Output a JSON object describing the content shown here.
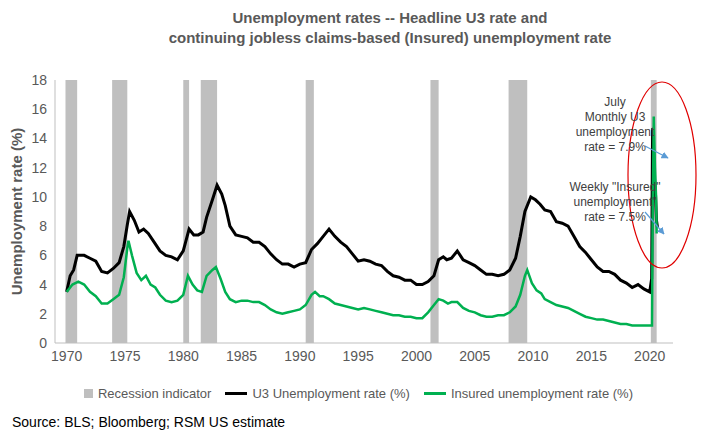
{
  "chart_data": {
    "type": "line",
    "title": [
      "Unemployment rates -- Headline U3 rate and",
      "continuing jobless claims-based (Insured) unemployment rate"
    ],
    "y_label": "Unemployment rate (%)",
    "xlim": [
      1969,
      2022
    ],
    "xticks": [
      1970,
      1975,
      1980,
      1985,
      1990,
      1995,
      2000,
      2005,
      2010,
      2015,
      2020
    ],
    "ylim": [
      0,
      18
    ],
    "yticks": [
      0,
      2,
      4,
      6,
      8,
      10,
      12,
      14,
      16,
      18
    ],
    "grid": false,
    "legend": "bottom",
    "recessions": {
      "name": "Recession indicator",
      "color": "#bfbfbf",
      "ranges": [
        [
          1969.9,
          1970.9
        ],
        [
          1973.9,
          1975.2
        ],
        [
          1980.0,
          1980.5
        ],
        [
          1981.5,
          1982.9
        ],
        [
          1990.5,
          1991.2
        ],
        [
          2001.2,
          2001.9
        ],
        [
          2007.9,
          2009.5
        ],
        [
          2020.1,
          2020.6
        ]
      ]
    },
    "series": [
      {
        "name": "U3 Unemployment rate (%)",
        "color": "#000000",
        "x": [
          1970.0,
          1970.3,
          1970.6,
          1970.9,
          1971.5,
          1972.0,
          1972.5,
          1973.0,
          1973.5,
          1974.0,
          1974.5,
          1974.9,
          1975.2,
          1975.4,
          1975.8,
          1976.2,
          1976.6,
          1977.0,
          1977.5,
          1978.0,
          1978.5,
          1979.0,
          1979.5,
          1980.0,
          1980.5,
          1980.9,
          1981.3,
          1981.7,
          1982.0,
          1982.5,
          1982.9,
          1983.3,
          1983.6,
          1984.0,
          1984.5,
          1985.0,
          1985.5,
          1986.0,
          1986.5,
          1987.0,
          1987.5,
          1988.0,
          1988.5,
          1989.0,
          1989.5,
          1990.0,
          1990.5,
          1991.0,
          1991.5,
          1992.0,
          1992.5,
          1993.0,
          1993.5,
          1994.0,
          1994.5,
          1995.0,
          1995.5,
          1996.0,
          1996.5,
          1997.0,
          1997.5,
          1998.0,
          1998.5,
          1999.0,
          1999.5,
          2000.0,
          2000.5,
          2001.0,
          2001.5,
          2001.9,
          2002.3,
          2002.6,
          2003.0,
          2003.5,
          2004.0,
          2004.5,
          2005.0,
          2005.5,
          2006.0,
          2006.5,
          2007.0,
          2007.5,
          2008.0,
          2008.5,
          2008.9,
          2009.3,
          2009.8,
          2010.2,
          2010.6,
          2011.0,
          2011.5,
          2012.0,
          2012.5,
          2013.0,
          2013.5,
          2014.0,
          2014.5,
          2015.0,
          2015.5,
          2016.0,
          2016.5,
          2017.0,
          2017.5,
          2018.0,
          2018.5,
          2019.0,
          2019.5,
          2020.0,
          2020.17,
          2020.25,
          2020.33,
          2020.42,
          2020.5,
          2020.58,
          2020.67
        ],
        "values": [
          3.5,
          4.6,
          5.0,
          6.0,
          6.0,
          5.8,
          5.6,
          4.9,
          4.8,
          5.1,
          5.5,
          6.6,
          8.1,
          9.0,
          8.4,
          7.6,
          7.8,
          7.5,
          6.9,
          6.3,
          6.0,
          5.9,
          5.7,
          6.3,
          7.8,
          7.4,
          7.4,
          7.6,
          8.6,
          9.8,
          10.8,
          10.2,
          9.4,
          8.0,
          7.4,
          7.3,
          7.2,
          6.9,
          6.9,
          6.6,
          6.1,
          5.7,
          5.4,
          5.4,
          5.2,
          5.4,
          5.5,
          6.4,
          6.8,
          7.3,
          7.8,
          7.3,
          6.9,
          6.6,
          6.1,
          5.6,
          5.7,
          5.6,
          5.4,
          5.3,
          4.9,
          4.6,
          4.5,
          4.3,
          4.3,
          4.0,
          4.0,
          4.2,
          4.6,
          5.7,
          5.9,
          5.7,
          5.8,
          6.3,
          5.7,
          5.5,
          5.3,
          5.0,
          4.7,
          4.7,
          4.6,
          4.7,
          5.0,
          5.8,
          7.3,
          9.0,
          10.0,
          9.8,
          9.5,
          9.1,
          9.0,
          8.3,
          8.2,
          8.0,
          7.3,
          6.6,
          6.2,
          5.7,
          5.2,
          4.9,
          4.9,
          4.7,
          4.3,
          4.1,
          3.8,
          4.0,
          3.7,
          3.5,
          4.4,
          14.7,
          13.3,
          11.1,
          10.2,
          8.4,
          7.9
        ]
      },
      {
        "name": "Insured unemployment rate (%)",
        "color": "#00b050",
        "x": [
          1970.0,
          1970.5,
          1971.0,
          1971.5,
          1972.0,
          1972.5,
          1973.0,
          1973.5,
          1974.0,
          1974.5,
          1974.9,
          1975.2,
          1975.3,
          1975.6,
          1976.0,
          1976.4,
          1976.8,
          1977.2,
          1977.6,
          1978.0,
          1978.5,
          1979.0,
          1979.5,
          1980.0,
          1980.4,
          1980.8,
          1981.2,
          1981.6,
          1982.0,
          1982.5,
          1982.8,
          1983.2,
          1983.6,
          1984.0,
          1984.5,
          1985.0,
          1985.5,
          1986.0,
          1986.5,
          1987.0,
          1987.5,
          1988.0,
          1988.5,
          1989.0,
          1989.5,
          1990.0,
          1990.5,
          1991.0,
          1991.3,
          1991.7,
          1992.0,
          1992.5,
          1993.0,
          1993.5,
          1994.0,
          1994.5,
          1995.0,
          1995.5,
          1996.0,
          1996.5,
          1997.0,
          1997.5,
          1998.0,
          1998.5,
          1999.0,
          1999.5,
          2000.0,
          2000.5,
          2001.0,
          2001.5,
          2001.9,
          2002.3,
          2002.7,
          2003.0,
          2003.5,
          2004.0,
          2004.5,
          2005.0,
          2005.5,
          2006.0,
          2006.5,
          2007.0,
          2007.5,
          2008.0,
          2008.5,
          2008.9,
          2009.3,
          2009.5,
          2009.9,
          2010.3,
          2010.7,
          2011.0,
          2011.5,
          2012.0,
          2012.5,
          2013.0,
          2013.5,
          2014.0,
          2014.5,
          2015.0,
          2015.5,
          2016.0,
          2016.5,
          2017.0,
          2017.5,
          2018.0,
          2018.5,
          2019.0,
          2019.5,
          2020.0,
          2020.2,
          2020.25,
          2020.35,
          2020.45,
          2020.55,
          2020.6
        ],
        "values": [
          3.5,
          4.0,
          4.2,
          4.0,
          3.5,
          3.2,
          2.7,
          2.7,
          3.0,
          3.3,
          4.5,
          6.5,
          7.0,
          6.0,
          4.8,
          4.3,
          4.6,
          4.0,
          3.8,
          3.3,
          2.9,
          2.8,
          2.9,
          3.3,
          4.6,
          4.0,
          3.6,
          3.5,
          4.6,
          5.0,
          5.2,
          4.4,
          3.5,
          3.0,
          2.8,
          2.9,
          2.9,
          2.8,
          2.8,
          2.6,
          2.3,
          2.1,
          2.0,
          2.1,
          2.2,
          2.3,
          2.6,
          3.3,
          3.5,
          3.2,
          3.2,
          3.0,
          2.7,
          2.6,
          2.5,
          2.4,
          2.3,
          2.4,
          2.3,
          2.2,
          2.1,
          2.0,
          1.9,
          1.9,
          1.8,
          1.8,
          1.7,
          1.7,
          2.1,
          2.6,
          3.0,
          2.9,
          2.7,
          2.8,
          2.8,
          2.4,
          2.2,
          2.1,
          1.9,
          1.8,
          1.8,
          1.9,
          1.9,
          2.1,
          2.5,
          3.3,
          4.6,
          5.0,
          4.1,
          3.6,
          3.4,
          3.0,
          2.8,
          2.6,
          2.5,
          2.4,
          2.2,
          2.0,
          1.8,
          1.7,
          1.6,
          1.6,
          1.5,
          1.4,
          1.3,
          1.3,
          1.2,
          1.2,
          1.2,
          1.2,
          1.2,
          8.0,
          15.5,
          12.0,
          10.0,
          7.5
        ]
      }
    ],
    "annotations": [
      {
        "lines": [
          "July",
          "Monthly U3",
          "unemployment",
          "rate = 7.9%"
        ]
      },
      {
        "lines": [
          "Weekly \"Insured\"",
          "unemployment\"",
          "rate = 7.5%"
        ]
      }
    ],
    "source": "Source: BLS; Bloomberg; RSM US estimate"
  }
}
